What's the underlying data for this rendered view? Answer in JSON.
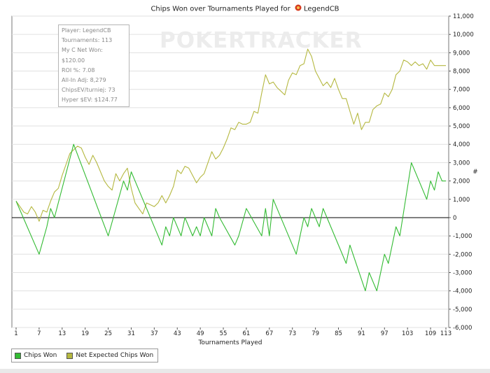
{
  "title": {
    "prefix": "Chips Won over Tournaments Played for",
    "player": "LegendCB"
  },
  "watermark": "POKERTRACKER",
  "info": [
    "Player: LegendCB",
    "Tournaments: 113",
    "My C Net Won: $120.00",
    "ROI %: 7.08",
    "All-In Adj: 8,279",
    "ChipsEV/turniej: 73",
    "Hyper $EV: $124.77"
  ],
  "colors": {
    "chips_won": "#33bb33",
    "net_expected": "#b5b840",
    "zero_line": "#000000",
    "grid": "#e0e0e0"
  },
  "chart_data": {
    "type": "line",
    "title": "Chips Won over Tournaments Played for LegendCB",
    "xlabel": "Tournaments Played",
    "ylabel": "#",
    "xlim": [
      1,
      113
    ],
    "ylim": [
      -6000,
      11000
    ],
    "x_ticks": [
      "1",
      "7",
      "13",
      "19",
      "25",
      "31",
      "37",
      "43",
      "49",
      "55",
      "61",
      "67",
      "73",
      "79",
      "85",
      "91",
      "97",
      "103",
      "109",
      "113"
    ],
    "y_ticks": [
      "11,000",
      "10,000",
      "9,000",
      "8,000",
      "7,000",
      "6,000",
      "5,000",
      "4,000",
      "3,000",
      "2,000",
      "1,000",
      "0",
      "-1,000",
      "-2,000",
      "-3,000",
      "-4,000",
      "-5,000",
      "-6,000"
    ],
    "legend_position": "bottom-left",
    "series": [
      {
        "name": "Chips Won",
        "x": [
          1,
          7,
          9,
          10,
          11,
          16,
          25,
          29,
          30,
          31,
          39,
          40,
          41,
          42,
          44,
          45,
          47,
          48,
          49,
          50,
          51,
          52,
          53,
          54,
          58,
          59,
          61,
          65,
          66,
          67,
          68,
          74,
          76,
          77,
          78,
          80,
          81,
          87,
          88,
          92,
          93,
          95,
          97,
          98,
          100,
          101,
          104,
          108,
          109,
          110,
          111,
          112,
          113
        ],
        "values": [
          900,
          -2000,
          -500,
          500,
          0,
          4000,
          -1000,
          2000,
          1500,
          2500,
          -1500,
          -500,
          -1000,
          0,
          -1000,
          0,
          -1000,
          -500,
          -1000,
          0,
          -500,
          -1000,
          500,
          0,
          -1500,
          -1000,
          500,
          -1000,
          500,
          -1000,
          1000,
          -2000,
          0,
          -500,
          500,
          -500,
          500,
          -2500,
          -1500,
          -4000,
          -3000,
          -4000,
          -2000,
          -2500,
          -500,
          -1000,
          3000,
          1000,
          2000,
          1500,
          2500,
          2000,
          2000
        ]
      },
      {
        "name": "Net Expected Chips Won",
        "x": [
          1,
          2,
          3,
          4,
          5,
          6,
          7,
          8,
          9,
          10,
          11,
          12,
          13,
          14,
          15,
          16,
          17,
          18,
          19,
          20,
          21,
          22,
          23,
          24,
          25,
          26,
          27,
          28,
          29,
          30,
          31,
          32,
          33,
          34,
          35,
          36,
          37,
          38,
          39,
          40,
          41,
          42,
          43,
          44,
          45,
          46,
          47,
          48,
          49,
          50,
          51,
          52,
          53,
          54,
          55,
          56,
          57,
          58,
          59,
          60,
          61,
          62,
          63,
          64,
          65,
          66,
          67,
          68,
          69,
          70,
          71,
          72,
          73,
          74,
          75,
          76,
          77,
          78,
          79,
          80,
          81,
          82,
          83,
          84,
          85,
          86,
          87,
          88,
          89,
          90,
          91,
          92,
          93,
          94,
          95,
          96,
          97,
          98,
          99,
          100,
          101,
          102,
          103,
          104,
          105,
          106,
          107,
          108,
          109,
          110,
          111,
          112,
          113
        ],
        "values": [
          900,
          600,
          300,
          200,
          600,
          300,
          -200,
          400,
          300,
          900,
          1400,
          1600,
          2300,
          2900,
          3500,
          3700,
          3900,
          3800,
          3300,
          2900,
          3400,
          3000,
          2500,
          2000,
          1700,
          1500,
          2400,
          2000,
          2400,
          2700,
          1600,
          800,
          500,
          200,
          800,
          700,
          600,
          800,
          1200,
          800,
          1200,
          1700,
          2600,
          2400,
          2800,
          2700,
          2300,
          1900,
          2200,
          2400,
          3000,
          3600,
          3200,
          3400,
          3800,
          4300,
          4900,
          4800,
          5200,
          5100,
          5100,
          5200,
          5800,
          5700,
          6800,
          7800,
          7300,
          7400,
          7100,
          6900,
          6700,
          7500,
          7900,
          7800,
          8300,
          8400,
          9200,
          8800,
          8000,
          7600,
          7200,
          7400,
          7100,
          7600,
          7000,
          6500,
          6500,
          5800,
          5100,
          5700,
          4800,
          5200,
          5200,
          5900,
          6100,
          6200,
          6800,
          6600,
          7000,
          7800,
          8000,
          8600,
          8500,
          8300,
          8500,
          8300,
          8400,
          8100,
          8600,
          8300,
          8300,
          8300,
          8300
        ]
      }
    ]
  }
}
